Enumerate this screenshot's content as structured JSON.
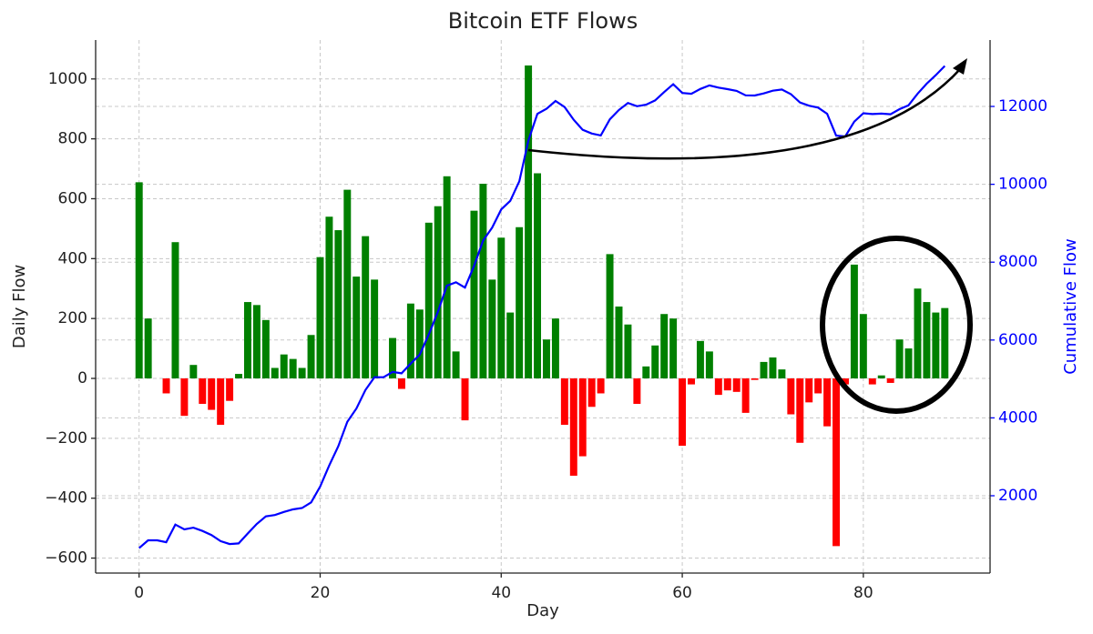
{
  "chart_data": {
    "type": "bar_line_dual",
    "title": "Bitcoin ETF Flows",
    "x_label": "Day",
    "y_label": "Daily Flow",
    "y2_label": "Cumulative Flow",
    "x": [
      0,
      1,
      2,
      3,
      4,
      5,
      6,
      7,
      8,
      9,
      10,
      11,
      12,
      13,
      14,
      15,
      16,
      17,
      18,
      19,
      20,
      21,
      22,
      23,
      24,
      25,
      26,
      27,
      28,
      29,
      30,
      31,
      32,
      33,
      34,
      35,
      36,
      37,
      38,
      39,
      40,
      41,
      42,
      43,
      44,
      45,
      46,
      47,
      48,
      49,
      50,
      51,
      52,
      53,
      54,
      55,
      56,
      57,
      58,
      59,
      60,
      61,
      62,
      63,
      64,
      65,
      66,
      67,
      68,
      69,
      70,
      71,
      72,
      73,
      74,
      75,
      76,
      77,
      78,
      79,
      80,
      81,
      82,
      83,
      84,
      85,
      86,
      87,
      88,
      89
    ],
    "series": [
      {
        "name": "Daily Flow",
        "positive_color": "#008000",
        "negative_color": "#ff0000",
        "values": [
          655,
          200,
          0,
          -50,
          455,
          -125,
          45,
          -85,
          -105,
          -155,
          -75,
          15,
          255,
          245,
          195,
          35,
          80,
          65,
          35,
          145,
          405,
          540,
          495,
          630,
          340,
          475,
          330,
          0,
          135,
          -35,
          250,
          230,
          520,
          575,
          675,
          90,
          -140,
          560,
          650,
          330,
          470,
          220,
          505,
          1045,
          685,
          130,
          200,
          -155,
          -325,
          -260,
          -95,
          -50,
          415,
          240,
          180,
          -85,
          40,
          110,
          215,
          200,
          -225,
          -20,
          125,
          90,
          -55,
          -40,
          -45,
          -115,
          -5,
          55,
          70,
          30,
          -120,
          -215,
          -80,
          -50,
          -160,
          -560,
          -20,
          380,
          215,
          -20,
          10,
          -15,
          130,
          100,
          300,
          255,
          220,
          235
        ]
      },
      {
        "name": "Cumulative Flow",
        "color": "#0000ff",
        "axis": "y2",
        "values": [
          655,
          855,
          855,
          805,
          1260,
          1135,
          1180,
          1095,
          990,
          835,
          760,
          775,
          1030,
          1275,
          1470,
          1505,
          1585,
          1650,
          1685,
          1830,
          2235,
          2775,
          3270,
          3900,
          4240,
          4715,
          5045,
          5045,
          5180,
          5145,
          5395,
          5625,
          6145,
          6720,
          7395,
          7485,
          7345,
          7905,
          8555,
          8885,
          9355,
          9575,
          10080,
          11125,
          11810,
          11940,
          12140,
          11985,
          11660,
          11400,
          11305,
          11255,
          11670,
          11910,
          12090,
          12005,
          12045,
          12155,
          12370,
          12570,
          12345,
          12325,
          12450,
          12540,
          12485,
          12445,
          12400,
          12285,
          12280,
          12335,
          12405,
          12435,
          12315,
          12100,
          12020,
          11970,
          11810,
          11250,
          11230,
          11610,
          11825,
          11805,
          11815,
          11800,
          11930,
          12030,
          12330,
          12585,
          12805,
          13040
        ]
      }
    ],
    "xlim": [
      -4.8,
      94
    ],
    "xticks": [
      0,
      20,
      40,
      60,
      80
    ],
    "ylim": [
      -650,
      1130
    ],
    "yticks": [
      {
        "value": -600,
        "label": "−600"
      },
      {
        "value": -400,
        "label": "−400"
      },
      {
        "value": -200,
        "label": "−200"
      },
      0,
      200,
      400,
      600,
      800,
      1000
    ],
    "y2lim": [
      14,
      13706
    ],
    "y2ticks": [
      2000,
      4000,
      6000,
      8000,
      10000,
      12000
    ],
    "grid": true
  }
}
